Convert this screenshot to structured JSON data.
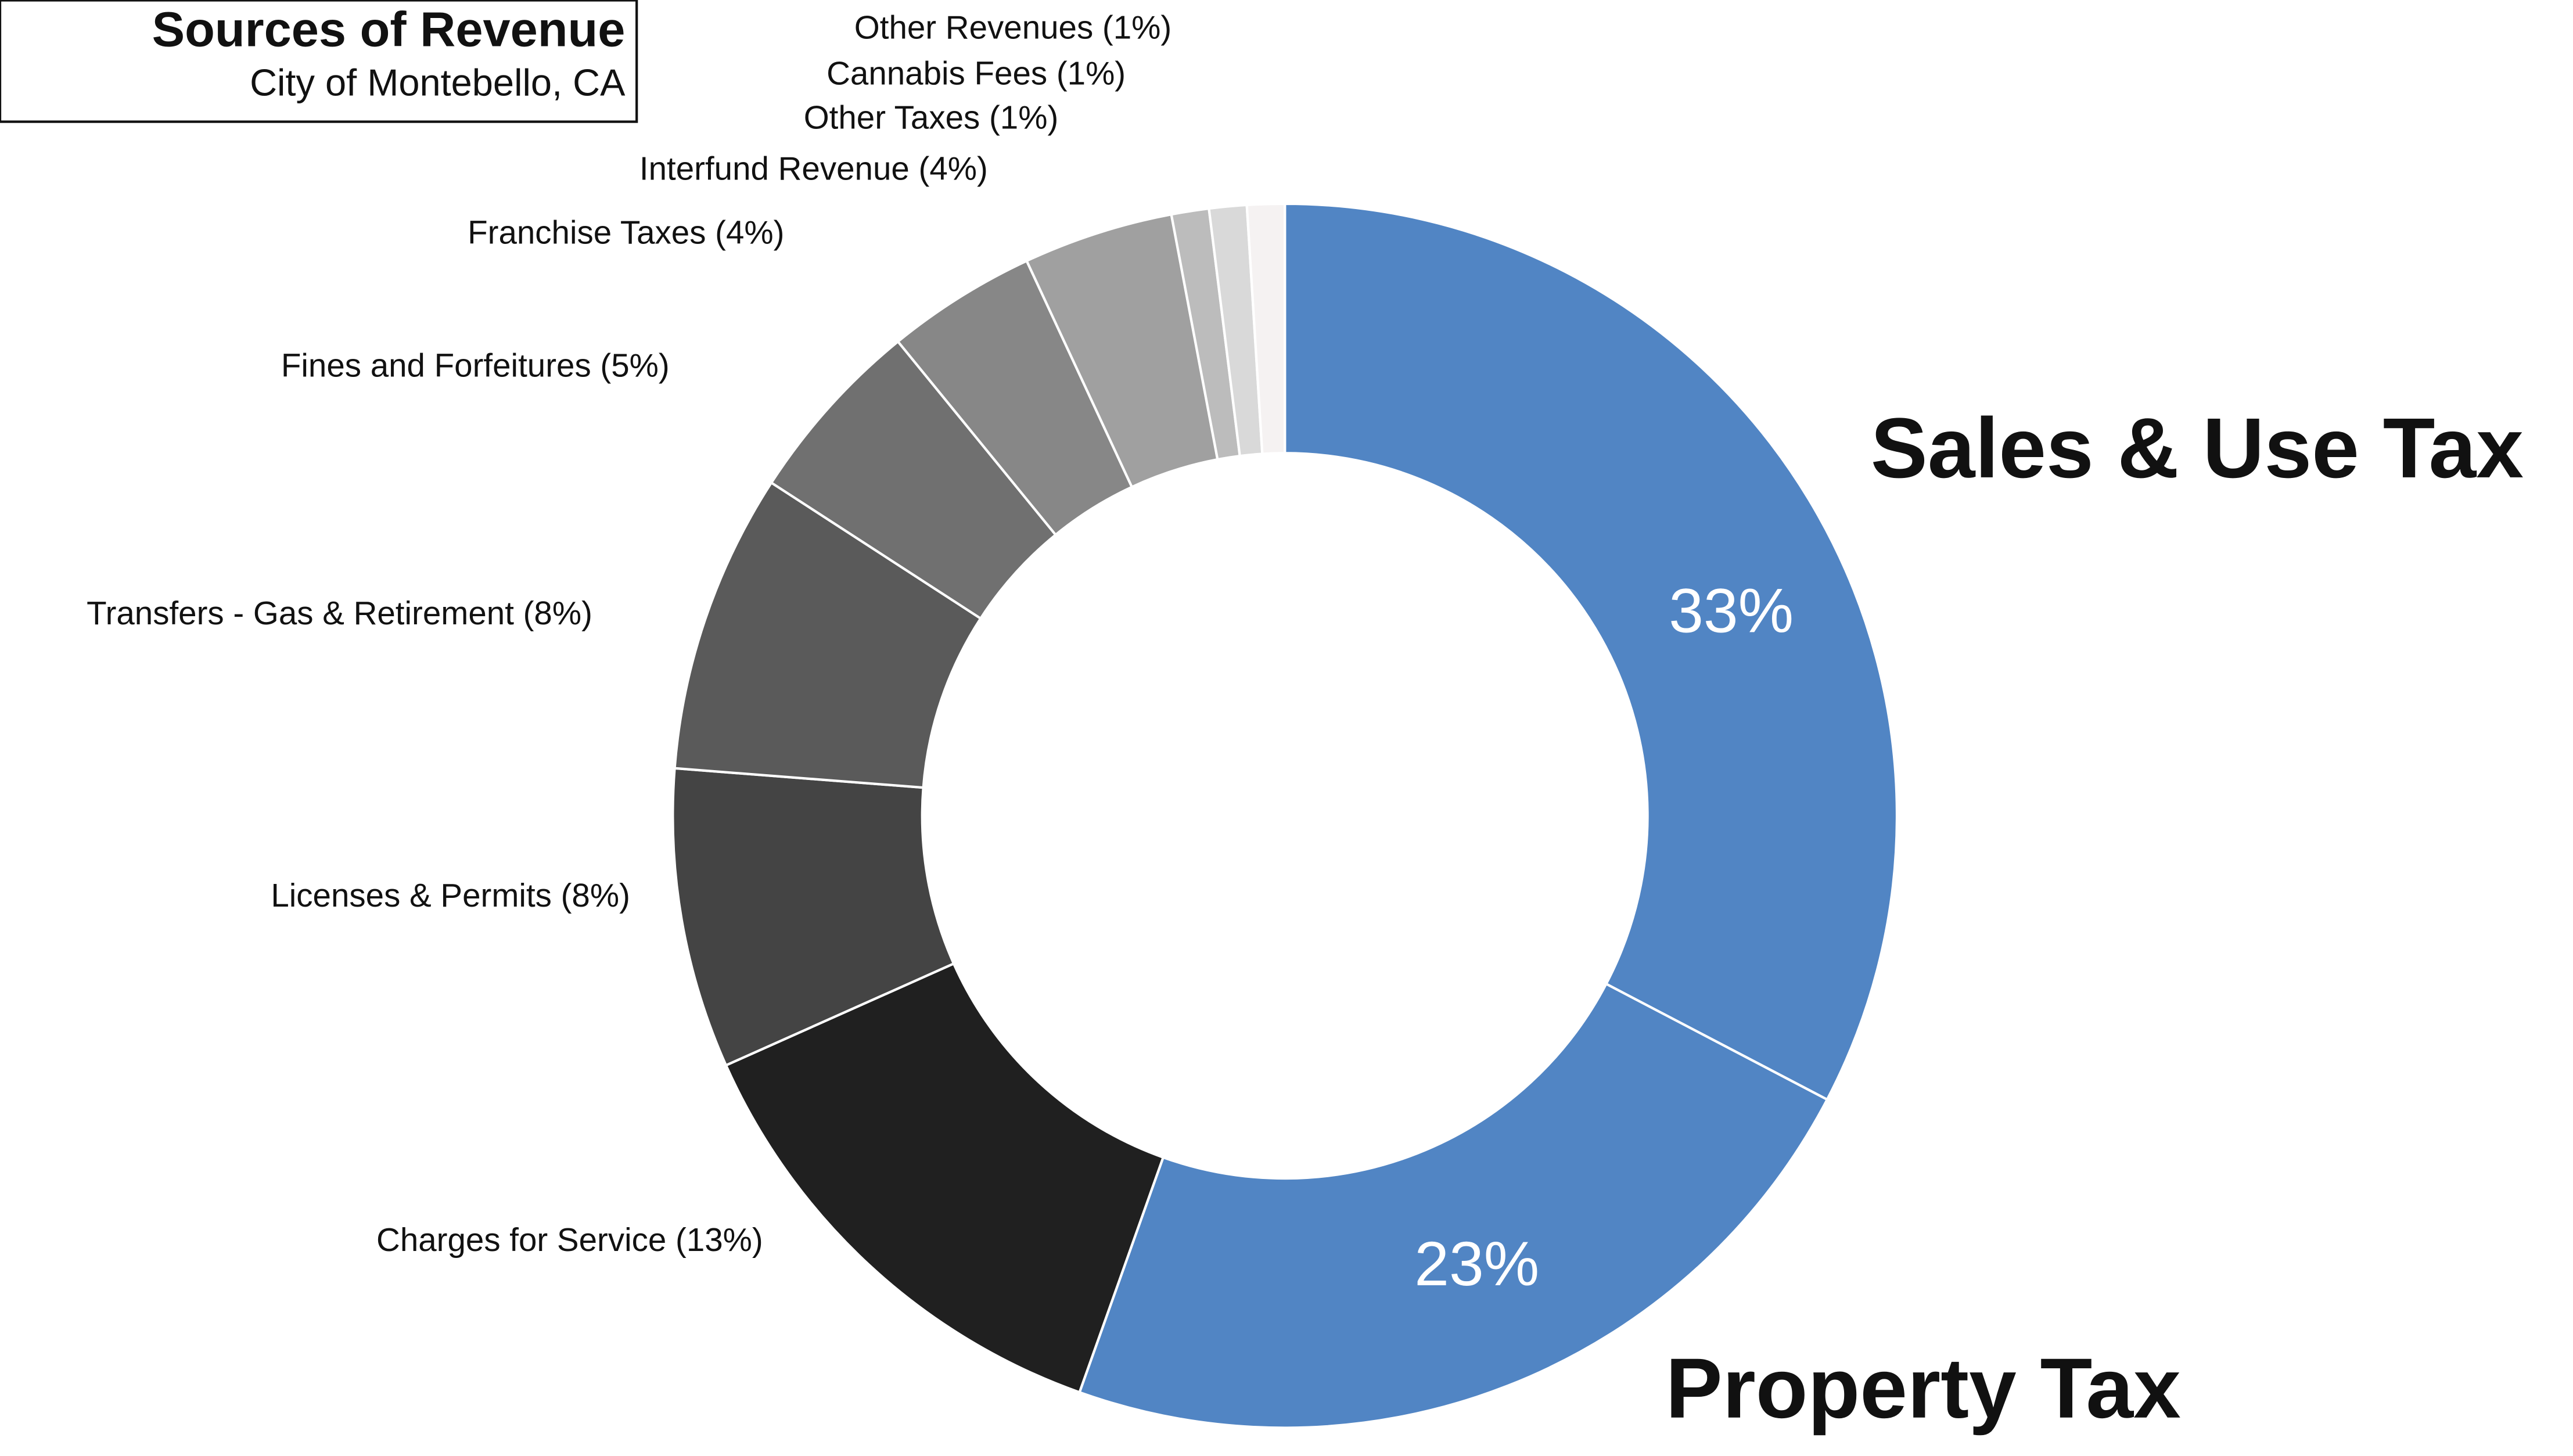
{
  "chart_data": {
    "type": "donut",
    "title": "Sources of Revenue",
    "subtitle": "City of Montebello, CA",
    "categories": [
      "Sales & Use Tax",
      "Property Tax",
      "Charges for Service",
      "Licenses & Permits",
      "Transfers - Gas & Retirement",
      "Fines and Forfeitures",
      "Franchise Taxes",
      "Interfund Revenue",
      "Other Taxes",
      "Cannabis Fees",
      "Other Revenues"
    ],
    "values": [
      33,
      23,
      13,
      8,
      8,
      5,
      4,
      4,
      1,
      1,
      1
    ],
    "value_labels": [
      "33%",
      "23%",
      "(13%)",
      "(8%)",
      "(8%)",
      "(5%)",
      "(4%)",
      "(4%)",
      "(1%)",
      "(1%)",
      "(1%)"
    ],
    "colors": [
      "#5185c4",
      "#5185c4",
      "#202020",
      "#444444",
      "#5a5a5a",
      "#707070",
      "#878787",
      "#a0a0a0",
      "#bcbcbc",
      "#d9d9d9",
      "#f5f2f2"
    ]
  }
}
